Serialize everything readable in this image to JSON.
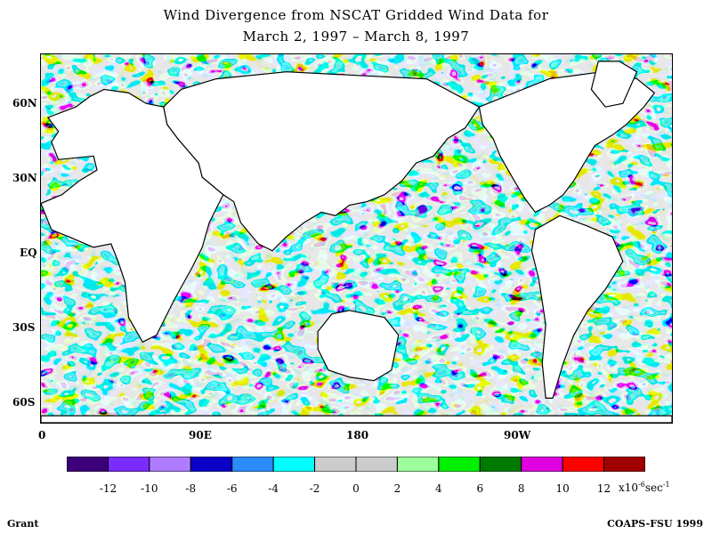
{
  "title": {
    "line1": "Wind Divergence from NSCAT Gridded Wind Data for",
    "line2": "March 2, 1997 – March 8, 1997"
  },
  "map": {
    "lat_labels": [
      "60N",
      "30N",
      "EQ",
      "30S",
      "60S"
    ],
    "lon_labels": [
      "0",
      "90E",
      "180",
      "90W"
    ],
    "land_color": "#ffffff",
    "coast_color": "#000000"
  },
  "legend": {
    "colors": [
      "#3d007a",
      "#7a2cff",
      "#b07cff",
      "#0a00c8",
      "#2a8cff",
      "#00ffff",
      "#cccccc",
      "#cccccc",
      "#9cff9c",
      "#00f000",
      "#007a00",
      "#e000e0",
      "#ff0000",
      "#a00000"
    ],
    "tick_labels": [
      "-12",
      "-10",
      "-8",
      "-6",
      "-4",
      "-2",
      "0",
      "2",
      "4",
      "6",
      "8",
      "10",
      "12"
    ],
    "unit_base": "x10",
    "unit_exp": "-6",
    "unit_tail": "sec",
    "unit_tail_exp": "-1"
  },
  "footer": {
    "left": "Grant",
    "right": "COAPS-FSU 1999"
  }
}
